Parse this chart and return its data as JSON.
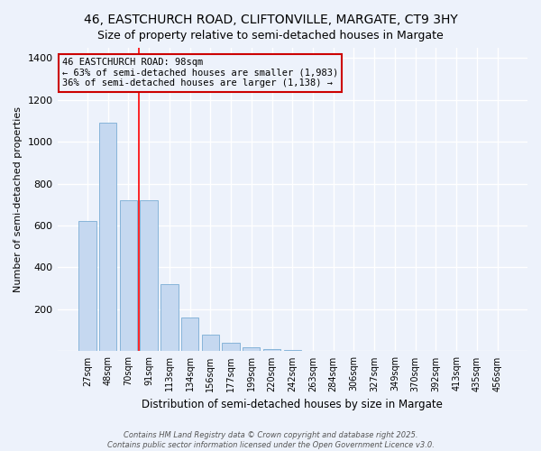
{
  "title": "46, EASTCHURCH ROAD, CLIFTONVILLE, MARGATE, CT9 3HY",
  "subtitle": "Size of property relative to semi-detached houses in Margate",
  "xlabel": "Distribution of semi-detached houses by size in Margate",
  "ylabel": "Number of semi-detached properties",
  "categories": [
    "27sqm",
    "48sqm",
    "70sqm",
    "91sqm",
    "113sqm",
    "134sqm",
    "156sqm",
    "177sqm",
    "199sqm",
    "220sqm",
    "242sqm",
    "263sqm",
    "284sqm",
    "306sqm",
    "327sqm",
    "349sqm",
    "370sqm",
    "392sqm",
    "413sqm",
    "435sqm",
    "456sqm"
  ],
  "values": [
    620,
    1090,
    720,
    720,
    320,
    160,
    80,
    40,
    20,
    10,
    5,
    2,
    1,
    0,
    0,
    0,
    0,
    0,
    0,
    0,
    0
  ],
  "bar_color": "#c5d8f0",
  "bar_edgecolor": "#7aadd4",
  "red_line_x": 3,
  "annotation_title": "46 EASTCHURCH ROAD: 98sqm",
  "annotation_line1": "← 63% of semi-detached houses are smaller (1,983)",
  "annotation_line2": "36% of semi-detached houses are larger (1,138) →",
  "annotation_box_color": "#cc0000",
  "ylim": [
    0,
    1450
  ],
  "yticks": [
    0,
    200,
    400,
    600,
    800,
    1000,
    1200,
    1400
  ],
  "background_color": "#edf2fb",
  "grid_color": "#d8e4f0",
  "footer_line1": "Contains HM Land Registry data © Crown copyright and database right 2025.",
  "footer_line2": "Contains public sector information licensed under the Open Government Licence v3.0."
}
